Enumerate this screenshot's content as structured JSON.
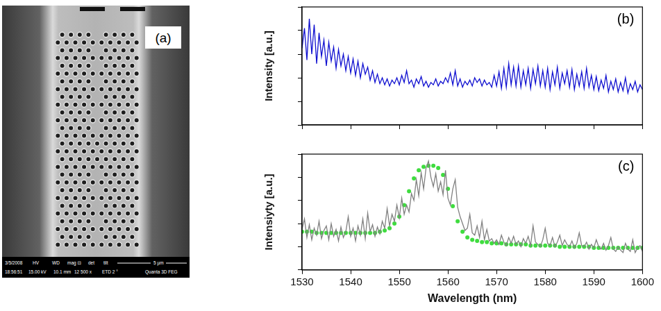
{
  "image": {
    "label": "(a)",
    "info_bar": [
      [
        "3/5/2008",
        "HV",
        "WD",
        "mag ⊡",
        "det",
        "tilt",
        "5 µm"
      ],
      [
        "18:56:51",
        "15.00 kV",
        "10.1 mm",
        "12 500 x",
        "ETD 2 °",
        "Quanta 3D FEG"
      ]
    ]
  },
  "chart_data": [
    {
      "type": "line",
      "title": "(b)",
      "y_label": "Intensity [a.u.]",
      "xlim": [
        1530,
        1600
      ],
      "xticks": [
        1530,
        1540,
        1550,
        1560,
        1570,
        1580,
        1590,
        1600
      ],
      "ylim": [
        0,
        10
      ],
      "yticks": [
        0,
        2,
        4,
        6,
        8,
        10
      ],
      "grid": false,
      "tick_labels": false,
      "x": [
        1530,
        1530.5,
        1531,
        1531.5,
        1532,
        1532.5,
        1533,
        1533.5,
        1534,
        1534.5,
        1535,
        1535.5,
        1536,
        1536.5,
        1537,
        1537.5,
        1538,
        1538.5,
        1539,
        1539.5,
        1540,
        1540.5,
        1541,
        1541.5,
        1542,
        1542.5,
        1543,
        1543.5,
        1544,
        1544.5,
        1545,
        1545.5,
        1546,
        1546.5,
        1547,
        1547.5,
        1548,
        1548.5,
        1549,
        1549.5,
        1550,
        1550.5,
        1551,
        1551.5,
        1552,
        1552.5,
        1553,
        1553.5,
        1554,
        1554.5,
        1555,
        1555.5,
        1556,
        1556.5,
        1557,
        1557.5,
        1558,
        1558.5,
        1559,
        1559.5,
        1560,
        1560.5,
        1561,
        1561.5,
        1562,
        1562.5,
        1563,
        1563.5,
        1564,
        1564.5,
        1565,
        1565.5,
        1566,
        1566.5,
        1567,
        1567.5,
        1568,
        1568.5,
        1569,
        1569.5,
        1570,
        1570.5,
        1571,
        1571.5,
        1572,
        1572.5,
        1573,
        1573.5,
        1574,
        1574.5,
        1575,
        1575.5,
        1576,
        1576.5,
        1577,
        1577.5,
        1578,
        1578.5,
        1579,
        1579.5,
        1580,
        1580.5,
        1581,
        1581.5,
        1582,
        1582.5,
        1583,
        1583.5,
        1584,
        1584.5,
        1585,
        1585.5,
        1586,
        1586.5,
        1587,
        1587.5,
        1588,
        1588.5,
        1589,
        1589.5,
        1590,
        1590.5,
        1591,
        1591.5,
        1592,
        1592.5,
        1593,
        1593.5,
        1594,
        1594.5,
        1595,
        1595.5,
        1596,
        1596.5,
        1597,
        1597.5,
        1598,
        1598.5,
        1599,
        1599.5,
        1600
      ],
      "series": [
        {
          "color": "#1010d0",
          "marker": "none",
          "line_style": "solid",
          "values": [
            6.5,
            8.2,
            5.5,
            9.0,
            6.0,
            8.5,
            5.2,
            7.8,
            5.8,
            7.2,
            5.0,
            7.0,
            5.4,
            6.6,
            4.8,
            6.4,
            5.0,
            6.0,
            4.6,
            5.8,
            4.4,
            5.6,
            4.2,
            5.4,
            4.0,
            5.2,
            4.3,
            4.9,
            3.8,
            4.6,
            3.6,
            4.3,
            3.5,
            4.0,
            3.4,
            3.9,
            3.3,
            3.8,
            3.5,
            4.0,
            3.4,
            4.2,
            3.6,
            4.6,
            3.5,
            3.8,
            3.2,
            3.9,
            3.5,
            4.1,
            3.3,
            3.7,
            3.2,
            3.6,
            3.4,
            3.9,
            3.3,
            3.7,
            3.5,
            4.0,
            3.6,
            4.4,
            3.4,
            4.6,
            3.3,
            3.9,
            3.2,
            3.7,
            3.4,
            3.8,
            3.3,
            4.0,
            3.6,
            3.9,
            3.3,
            3.8,
            3.4,
            3.6,
            3.2,
            4.2,
            3.3,
            4.5,
            3.1,
            4.8,
            3.2,
            5.2,
            3.4,
            4.9,
            3.3,
            5.0,
            3.2,
            4.6,
            3.4,
            4.8,
            3.1,
            4.7,
            3.5,
            5.0,
            3.3,
            4.6,
            3.2,
            4.8,
            3.0,
            4.5,
            3.4,
            4.9,
            3.1,
            4.4,
            3.5,
            4.6,
            3.2,
            4.7,
            3.0,
            4.3,
            3.3,
            4.5,
            3.1,
            4.8,
            3.2,
            4.2,
            3.0,
            4.1,
            2.9,
            3.8,
            3.1,
            4.2,
            2.8,
            3.7,
            3.0,
            3.9,
            2.8,
            3.6,
            2.9,
            4.0,
            2.7,
            3.5,
            3.0,
            3.7,
            2.8,
            3.4,
            3.0
          ]
        }
      ]
    },
    {
      "type": "line",
      "title": "(c)",
      "y_label": "Intensiyty [a.u.]",
      "x_label": "Wavelength (nm)",
      "xlim": [
        1530,
        1600
      ],
      "xticks": [
        1530,
        1540,
        1550,
        1560,
        1570,
        1580,
        1590,
        1600
      ],
      "ylim": [
        0,
        10
      ],
      "yticks": [
        0,
        2,
        4,
        6,
        8,
        10
      ],
      "grid": false,
      "tick_labels": "x",
      "x": [
        1530,
        1530.5,
        1531,
        1531.5,
        1532,
        1532.5,
        1533,
        1533.5,
        1534,
        1534.5,
        1535,
        1535.5,
        1536,
        1536.5,
        1537,
        1537.5,
        1538,
        1538.5,
        1539,
        1539.5,
        1540,
        1540.5,
        1541,
        1541.5,
        1542,
        1542.5,
        1543,
        1543.5,
        1544,
        1544.5,
        1545,
        1545.5,
        1546,
        1546.5,
        1547,
        1547.5,
        1548,
        1548.5,
        1549,
        1549.5,
        1550,
        1550.5,
        1551,
        1551.5,
        1552,
        1552.5,
        1553,
        1553.5,
        1554,
        1554.5,
        1555,
        1555.5,
        1556,
        1556.5,
        1557,
        1557.5,
        1558,
        1558.5,
        1559,
        1559.5,
        1560,
        1560.5,
        1561,
        1561.5,
        1562,
        1562.5,
        1563,
        1563.5,
        1564,
        1564.5,
        1565,
        1565.5,
        1566,
        1566.5,
        1567,
        1567.5,
        1568,
        1568.5,
        1569,
        1569.5,
        1570,
        1570.5,
        1571,
        1571.5,
        1572,
        1572.5,
        1573,
        1573.5,
        1574,
        1574.5,
        1575,
        1575.5,
        1576,
        1576.5,
        1577,
        1577.5,
        1578,
        1578.5,
        1579,
        1579.5,
        1580,
        1580.5,
        1581,
        1581.5,
        1582,
        1582.5,
        1583,
        1583.5,
        1584,
        1584.5,
        1585,
        1585.5,
        1586,
        1586.5,
        1587,
        1587.5,
        1588,
        1588.5,
        1589,
        1589.5,
        1590,
        1590.5,
        1591,
        1591.5,
        1592,
        1592.5,
        1593,
        1593.5,
        1594,
        1594.5,
        1595,
        1595.5,
        1596,
        1596.5,
        1597,
        1597.5,
        1598,
        1598.5,
        1599,
        1599.5,
        1600
      ],
      "series": [
        {
          "color": "#808080",
          "marker": "none",
          "line_style": "solid",
          "values": [
            3.5,
            4.4,
            2.8,
            3.9,
            2.6,
            3.6,
            3.0,
            4.2,
            2.7,
            3.4,
            3.8,
            2.6,
            4.0,
            2.9,
            3.5,
            2.5,
            3.7,
            2.8,
            3.3,
            4.6,
            2.9,
            3.6,
            2.5,
            3.8,
            3.0,
            4.4,
            2.7,
            4.9,
            3.3,
            3.9,
            2.9,
            3.7,
            3.1,
            4.2,
            3.6,
            5.3,
            3.8,
            4.8,
            4.2,
            5.6,
            4.5,
            6.2,
            4.8,
            5.6,
            5.0,
            6.6,
            6.0,
            7.8,
            6.4,
            8.4,
            7.0,
            8.8,
            9.4,
            8.0,
            7.2,
            8.3,
            6.8,
            7.6,
            6.5,
            8.6,
            6.2,
            5.6,
            7.0,
            7.8,
            5.4,
            4.6,
            4.0,
            3.4,
            3.6,
            4.8,
            3.2,
            3.0,
            3.8,
            2.8,
            4.2,
            2.6,
            3.5,
            2.5,
            2.7,
            2.3,
            2.6,
            2.2,
            3.0,
            2.4,
            2.1,
            2.8,
            2.3,
            2.9,
            2.2,
            2.5,
            2.0,
            2.7,
            2.3,
            2.9,
            2.1,
            3.8,
            2.4,
            2.2,
            2.0,
            2.6,
            3.6,
            2.3,
            2.1,
            2.8,
            2.0,
            2.4,
            3.0,
            2.1,
            2.6,
            2.2,
            2.0,
            2.5,
            1.9,
            2.3,
            3.2,
            2.1,
            2.0,
            2.4,
            1.8,
            2.2,
            1.9,
            2.6,
            2.0,
            1.8,
            2.3,
            1.7,
            2.1,
            2.8,
            1.8,
            1.6,
            2.0,
            1.7,
            1.5,
            2.3,
            1.8,
            1.6,
            2.6,
            1.5,
            1.9,
            2.1,
            1.6
          ]
        },
        {
          "color": "#3fdc3f",
          "marker": "circle",
          "line_style": "none",
          "x": [
            1530,
            1531,
            1532,
            1533,
            1534,
            1535,
            1536,
            1537,
            1538,
            1539,
            1540,
            1541,
            1542,
            1543,
            1544,
            1545,
            1546,
            1547,
            1548,
            1549,
            1550,
            1551,
            1552,
            1553,
            1554,
            1555,
            1556,
            1557,
            1558,
            1559,
            1560,
            1561,
            1562,
            1563,
            1564,
            1565,
            1566,
            1567,
            1568,
            1569,
            1570,
            1571,
            1572,
            1573,
            1574,
            1575,
            1576,
            1577,
            1578,
            1579,
            1580,
            1581,
            1582,
            1583,
            1584,
            1585,
            1586,
            1587,
            1588,
            1589,
            1590,
            1591,
            1592,
            1593,
            1594,
            1595,
            1596,
            1597,
            1598,
            1599,
            1600
          ],
          "values": [
            3.3,
            3.3,
            3.3,
            3.2,
            3.2,
            3.2,
            3.2,
            3.2,
            3.2,
            3.2,
            3.2,
            3.2,
            3.2,
            3.2,
            3.2,
            3.2,
            3.3,
            3.4,
            3.6,
            4.0,
            4.6,
            5.6,
            6.8,
            7.9,
            8.6,
            8.9,
            9.0,
            9.0,
            8.8,
            8.2,
            7.0,
            5.5,
            4.2,
            3.3,
            2.8,
            2.6,
            2.5,
            2.4,
            2.4,
            2.3,
            2.3,
            2.3,
            2.2,
            2.2,
            2.2,
            2.2,
            2.2,
            2.1,
            2.1,
            2.1,
            2.1,
            2.1,
            2.1,
            2.0,
            2.0,
            2.0,
            2.0,
            2.0,
            2.0,
            2.0,
            1.9,
            1.9,
            1.9,
            1.9,
            1.9,
            1.9,
            1.9,
            1.9,
            1.9,
            1.9,
            1.9
          ]
        }
      ]
    }
  ]
}
